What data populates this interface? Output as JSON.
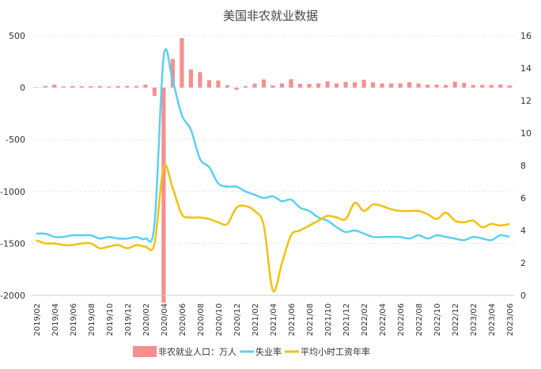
{
  "chart_data": {
    "type": "bar+line",
    "title": "美国非农就业数据",
    "x": [
      "2019/02",
      "2019/03",
      "2019/04",
      "2019/05",
      "2019/06",
      "2019/07",
      "2019/08",
      "2019/09",
      "2019/10",
      "2019/11",
      "2019/12",
      "2020/01",
      "2020/02",
      "2020/03",
      "2020/04",
      "2020/05",
      "2020/06",
      "2020/07",
      "2020/08",
      "2020/09",
      "2020/10",
      "2020/11",
      "2020/12",
      "2021/01",
      "2021/02",
      "2021/03",
      "2021/04",
      "2021/05",
      "2021/06",
      "2021/07",
      "2021/08",
      "2021/09",
      "2021/10",
      "2021/11",
      "2021/12",
      "2022/01",
      "2022/02",
      "2022/03",
      "2022/04",
      "2022/05",
      "2022/06",
      "2022/07",
      "2022/08",
      "2022/09",
      "2022/10",
      "2022/11",
      "2022/12",
      "2023/01",
      "2023/02",
      "2023/03",
      "2023/04",
      "2023/05",
      "2023/06"
    ],
    "xticks": [
      "2019/02",
      "2019/04",
      "2019/06",
      "2019/08",
      "2019/10",
      "2019/12",
      "2020/02",
      "2020/04",
      "2020/06",
      "2020/08",
      "2020/10",
      "2020/12",
      "2021/02",
      "2021/04",
      "2021/06",
      "2021/08",
      "2021/10",
      "2021/12",
      "2022/02",
      "2022/04",
      "2022/06",
      "2022/08",
      "2022/10",
      "2022/12",
      "2023/02",
      "2023/04",
      "2023/06"
    ],
    "y_left": {
      "ticks": [
        500,
        0,
        -500,
        -1000,
        -1500,
        -2000
      ],
      "ylim": [
        -2000,
        500
      ]
    },
    "y_right": {
      "ticks": [
        16,
        14,
        12,
        10,
        8,
        6,
        4,
        2,
        0
      ],
      "ylim": [
        0,
        16
      ]
    },
    "series": [
      {
        "name": "非农就业人口：万人",
        "kind": "bar",
        "axis": "left",
        "color": "#f4908e",
        "values": [
          2,
          15,
          28,
          10,
          15,
          14,
          14,
          15,
          10,
          15,
          16,
          15,
          28,
          -80,
          -2070,
          275,
          476,
          175,
          148,
          72,
          68,
          23,
          -22,
          15,
          38,
          78,
          20,
          40,
          80,
          35,
          35,
          40,
          60,
          40,
          55,
          50,
          75,
          50,
          40,
          40,
          40,
          52,
          40,
          28,
          28,
          25,
          56,
          45,
          25,
          25,
          25,
          30,
          20
        ]
      },
      {
        "name": "失业率",
        "kind": "line",
        "axis": "right",
        "color": "#5bd0f0",
        "values": [
          3.8,
          3.8,
          3.6,
          3.6,
          3.7,
          3.7,
          3.7,
          3.5,
          3.6,
          3.5,
          3.5,
          3.6,
          3.5,
          4.4,
          14.7,
          13.2,
          11.1,
          10.2,
          8.4,
          7.9,
          6.9,
          6.7,
          6.7,
          6.4,
          6.2,
          6.0,
          6.1,
          5.8,
          5.9,
          5.4,
          5.2,
          4.8,
          4.6,
          4.2,
          3.9,
          4.0,
          3.8,
          3.6,
          3.6,
          3.6,
          3.6,
          3.5,
          3.7,
          3.5,
          3.7,
          3.6,
          3.5,
          3.4,
          3.6,
          3.5,
          3.4,
          3.7,
          3.6
        ]
      },
      {
        "name": "平均小时工资年率",
        "kind": "line",
        "axis": "right",
        "color": "#f2c110",
        "values": [
          3.4,
          3.2,
          3.2,
          3.1,
          3.1,
          3.2,
          3.2,
          2.9,
          3.0,
          3.1,
          2.9,
          3.1,
          3.0,
          3.2,
          7.9,
          6.6,
          5.0,
          4.8,
          4.8,
          4.7,
          4.5,
          4.4,
          5.4,
          5.5,
          5.2,
          4.3,
          0.3,
          2.0,
          3.7,
          4.0,
          4.3,
          4.6,
          4.9,
          4.8,
          4.7,
          5.7,
          5.2,
          5.6,
          5.5,
          5.3,
          5.2,
          5.2,
          5.2,
          5.0,
          4.7,
          5.1,
          4.6,
          4.5,
          4.6,
          4.2,
          4.4,
          4.3,
          4.4
        ]
      }
    ],
    "legend": "bottom",
    "grid": true
  }
}
